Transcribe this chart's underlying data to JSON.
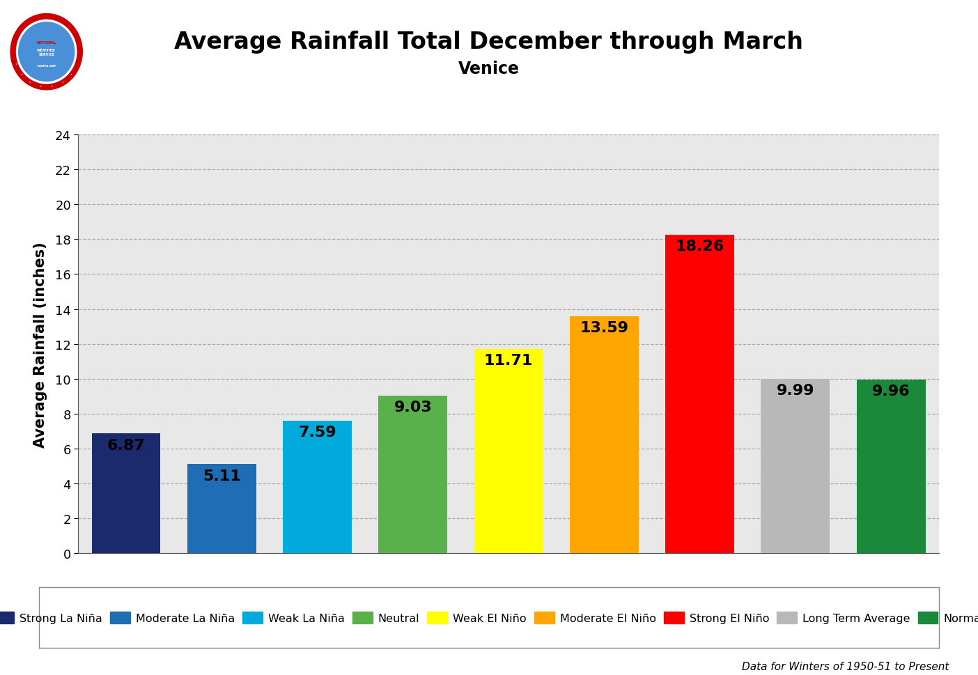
{
  "title": "Average Rainfall Total December through March",
  "subtitle": "Venice",
  "ylabel": "Average Rainfall (inches)",
  "ylim": [
    0,
    24
  ],
  "yticks": [
    0,
    2,
    4,
    6,
    8,
    10,
    12,
    14,
    16,
    18,
    20,
    22,
    24
  ],
  "categories": [
    "Strong La Niña",
    "Moderate La Niña",
    "Weak La Niña",
    "Neutral",
    "Weak El Niño",
    "Moderate El Niño",
    "Strong El Niño",
    "Long Term Average",
    "Normal"
  ],
  "values": [
    6.87,
    5.11,
    7.59,
    9.03,
    11.71,
    13.59,
    18.26,
    9.99,
    9.96
  ],
  "bar_colors": [
    "#1a2a6c",
    "#1e6db5",
    "#00aadd",
    "#5ab04a",
    "#ffff00",
    "#ffa500",
    "#ff0000",
    "#b8b8b8",
    "#1a8a3a"
  ],
  "value_labels": [
    "6.87",
    "5.11",
    "7.59",
    "9.03",
    "11.71",
    "13.59",
    "18.26",
    "9.99",
    "9.96"
  ],
  "footnote": "Data for Winters of 1950-51 to Present",
  "background_color": "#ffffff",
  "plot_bg_color": "#e8e8e8",
  "grid_color": "#aaaaaa",
  "title_fontsize": 24,
  "subtitle_fontsize": 17,
  "ylabel_fontsize": 15,
  "value_fontsize": 16,
  "legend_fontsize": 11.5
}
